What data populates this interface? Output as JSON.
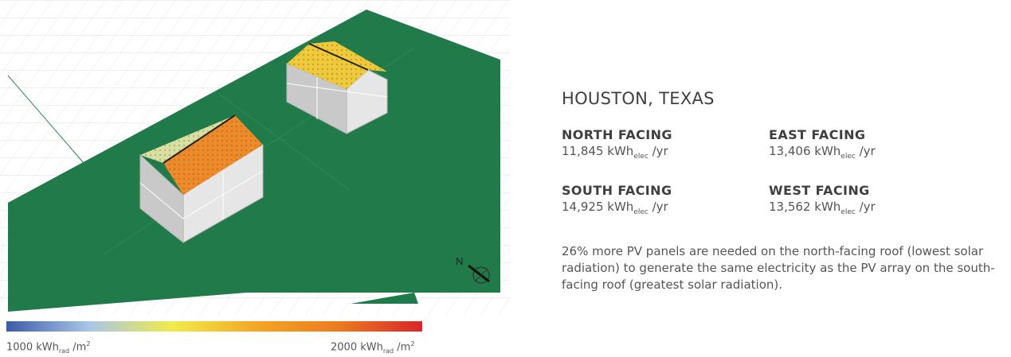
{
  "legend": {
    "min_value": "1000 kWh",
    "min_sub": "rad",
    "min_unit": " /m",
    "min_sup": "2",
    "max_value": "2000 kWh",
    "max_sub": "rad",
    "max_unit": " /m",
    "max_sup": "2",
    "gradient": [
      "#3b5ba8",
      "#a9c6e8",
      "#f1eb4a",
      "#f4a623",
      "#ec7a20",
      "#d9262a"
    ]
  },
  "compass": {
    "label": "N"
  },
  "colors": {
    "ground": "#217a4a",
    "wall_light": "#e6e6e6",
    "wall_dark": "#c9c9c9",
    "roof_south_warm": "#ef8a2a",
    "roof_north_cool": "#d9dfa0",
    "roof_east_west": "#f0c93a"
  },
  "info": {
    "city": "HOUSTON, TEXAS",
    "north": {
      "title": "NORTH FACING",
      "value": "11,845 kWh",
      "sub": "elec",
      "unit": " /yr"
    },
    "east": {
      "title": "EAST FACING",
      "value": "13,406 kWh",
      "sub": "elec",
      "unit": " /yr"
    },
    "south": {
      "title": "SOUTH FACING",
      "value": "14,925 kWh",
      "sub": "elec",
      "unit": " /yr"
    },
    "west": {
      "title": "WEST FACING",
      "value": "13,562 kWh",
      "sub": "elec",
      "unit": " /yr"
    },
    "note": "26% more PV panels are needed on the north-facing roof (lowest solar radiation) to generate the same electricity as the PV array on the south-facing roof (greatest solar radiation)."
  }
}
